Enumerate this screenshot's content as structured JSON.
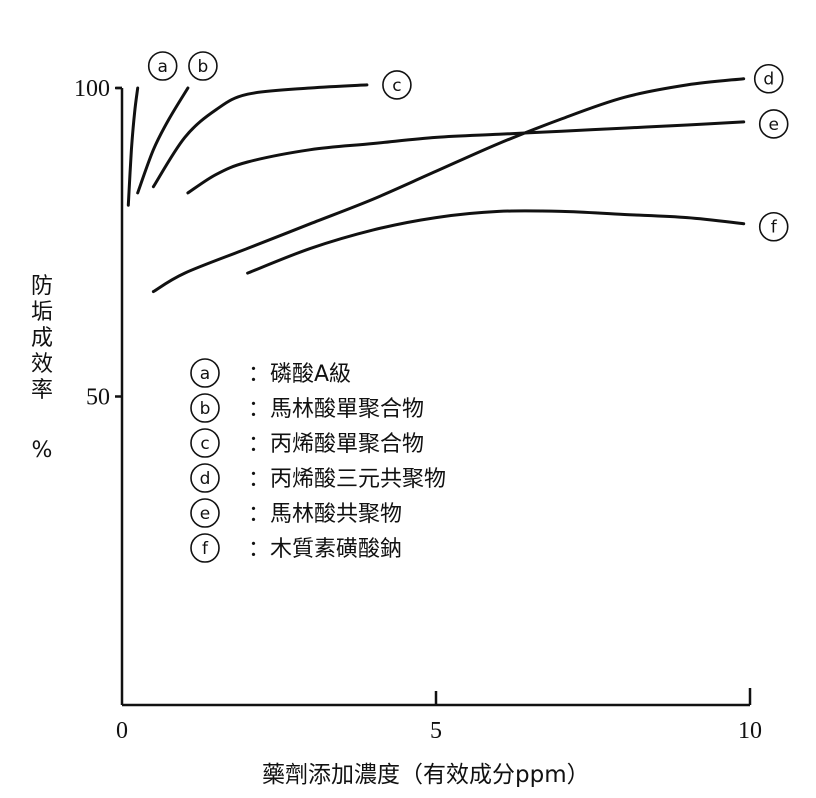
{
  "chart_data": {
    "type": "line",
    "xlabel": "藥劑添加濃度（有效成分ppm）",
    "ylabel_chars": [
      "防",
      "垢",
      "成",
      "效",
      "率"
    ],
    "ylabel_unit": "%",
    "xlim": [
      0,
      10
    ],
    "ylim": [
      0,
      100
    ],
    "x_ticks": [
      {
        "value": 0,
        "label": "0"
      },
      {
        "value": 5,
        "label": "5"
      },
      {
        "value": 10,
        "label": "10"
      }
    ],
    "y_ticks": [
      {
        "value": 50,
        "label": "50"
      },
      {
        "value": 100,
        "label": "100"
      }
    ],
    "series": [
      {
        "name": "a",
        "marker": "a",
        "x": [
          0.1,
          0.15,
          0.2,
          0.25
        ],
        "y": [
          81,
          90,
          96,
          100
        ]
      },
      {
        "name": "b",
        "marker": "b",
        "x": [
          0.25,
          0.5,
          0.75,
          1.05
        ],
        "y": [
          83,
          90,
          95,
          100
        ]
      },
      {
        "name": "c",
        "marker": "c",
        "x": [
          0.5,
          1,
          1.5,
          2,
          3,
          3.9
        ],
        "y": [
          84,
          92,
          96.5,
          99,
          100,
          100.5
        ]
      },
      {
        "name": "d",
        "marker": "d",
        "x": [
          0.5,
          1,
          2,
          3,
          4,
          5,
          6,
          7,
          8,
          9,
          9.9
        ],
        "y": [
          67,
          70,
          74,
          78,
          82,
          86.5,
          91,
          95,
          98.5,
          100.5,
          101.5
        ]
      },
      {
        "name": "e",
        "marker": "e",
        "x": [
          1.05,
          1.5,
          2,
          3,
          4,
          5,
          6,
          7,
          8,
          9,
          9.9
        ],
        "y": [
          83,
          86,
          88,
          90,
          91,
          92,
          92.5,
          93,
          93.5,
          94,
          94.5
        ]
      },
      {
        "name": "f",
        "marker": "f",
        "x": [
          2,
          3,
          4,
          5,
          6,
          7,
          8,
          9,
          9.9
        ],
        "y": [
          70,
          74,
          77,
          79,
          80,
          80,
          79.5,
          79,
          78
        ]
      }
    ]
  },
  "legend": [
    {
      "marker": "a",
      "label": "：磷酸A級"
    },
    {
      "marker": "b",
      "label": "：馬林酸單聚合物"
    },
    {
      "marker": "c",
      "label": "：丙烯酸單聚合物"
    },
    {
      "marker": "d",
      "label": "：丙烯酸三元共聚物"
    },
    {
      "marker": "e",
      "label": "：馬林酸共聚物"
    },
    {
      "marker": "f",
      "label": "：木質素磺酸鈉"
    }
  ]
}
